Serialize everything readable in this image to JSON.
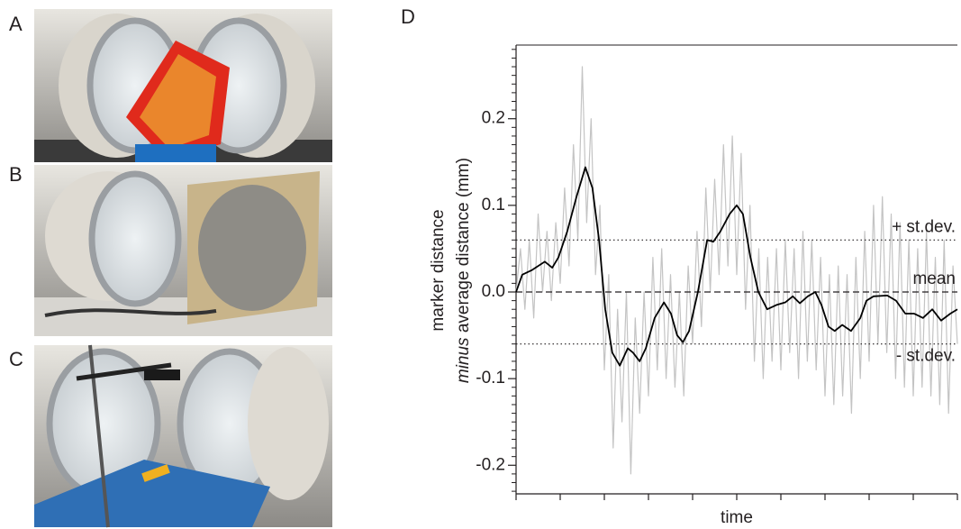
{
  "panels": [
    "A",
    "B",
    "C",
    "D"
  ],
  "chart_data": {
    "type": "line",
    "xlabel": "time",
    "ylabel": {
      "line1": "marker distance",
      "line2_italic": "minus",
      "line2": "average distance (mm)"
    },
    "xlim": [
      0,
      100
    ],
    "xticks": [
      0,
      10,
      20,
      30,
      40,
      50,
      60,
      70,
      80,
      90,
      100
    ],
    "ylim": [
      -0.233,
      0.285
    ],
    "yticks": [
      -0.2,
      -0.1,
      {
        "value": 0,
        "label": "0.0"
      },
      0.1,
      0.2
    ],
    "yminorticks": [
      -0.23,
      -0.22,
      -0.21,
      -0.19,
      -0.18,
      -0.17,
      -0.16,
      -0.15,
      -0.14,
      -0.13,
      -0.12,
      -0.11,
      -0.09,
      -0.08,
      -0.07,
      -0.06,
      -0.05,
      -0.04,
      -0.03,
      -0.02,
      -0.01,
      0.01,
      0.02,
      0.03,
      0.04,
      0.05,
      0.06,
      0.07,
      0.08,
      0.09,
      0.11,
      0.12,
      0.13,
      0.14,
      0.15,
      0.16,
      0.17,
      0.18,
      0.19,
      0.21,
      0.22,
      0.23,
      0.24,
      0.25,
      0.26,
      0.27,
      0.28
    ],
    "hlines": [
      {
        "value": 0.06,
        "label": "+ st.dev.",
        "style": "dotted"
      },
      {
        "value": 0,
        "label": "mean",
        "style": "dashed"
      },
      {
        "value": -0.06,
        "label": "- st.dev.",
        "style": "dotted"
      }
    ],
    "series": [
      {
        "color": "#c4c4c4",
        "x": [
          0,
          1,
          2,
          3,
          4,
          5,
          6,
          7,
          8,
          9,
          10,
          11,
          12,
          13,
          14,
          15,
          16,
          17,
          18,
          19,
          20,
          21,
          22,
          23,
          24,
          25,
          26,
          27,
          28,
          29,
          30,
          31,
          32,
          33,
          34,
          35,
          36,
          37,
          38,
          39,
          40,
          41,
          42,
          43,
          44,
          45,
          46,
          47,
          48,
          49,
          50,
          51,
          52,
          53,
          54,
          55,
          56,
          57,
          58,
          59,
          60,
          61,
          62,
          63,
          64,
          65,
          66,
          67,
          68,
          69,
          70,
          71,
          72,
          73,
          74,
          75,
          76,
          77,
          78,
          79,
          80,
          81,
          82,
          83,
          84,
          85,
          86,
          87,
          88,
          89,
          90,
          91,
          92,
          93,
          94,
          95,
          96,
          97,
          98,
          99,
          100
        ],
        "values": [
          0,
          0.05,
          -0.02,
          0.06,
          -0.03,
          0.09,
          0.0,
          0.07,
          -0.01,
          0.08,
          0.01,
          0.12,
          0.03,
          0.17,
          0.06,
          0.26,
          0.08,
          0.2,
          0.02,
          0.1,
          -0.09,
          0.02,
          -0.18,
          -0.02,
          -0.15,
          0.0,
          -0.21,
          -0.03,
          -0.14,
          0.0,
          -0.12,
          0.04,
          -0.09,
          0.05,
          -0.1,
          0.02,
          -0.11,
          0.0,
          -0.12,
          0.03,
          -0.06,
          0.07,
          -0.04,
          0.12,
          0.0,
          0.13,
          0.02,
          0.17,
          0.03,
          0.18,
          0.02,
          0.16,
          -0.02,
          0.1,
          -0.08,
          0.05,
          -0.1,
          0.04,
          -0.08,
          0.05,
          -0.09,
          0.06,
          -0.07,
          0.05,
          -0.1,
          0.07,
          -0.08,
          0.06,
          -0.09,
          0.04,
          -0.12,
          0.02,
          -0.13,
          0.03,
          -0.12,
          0.02,
          -0.14,
          0.04,
          -0.1,
          0.07,
          -0.08,
          0.1,
          -0.06,
          0.11,
          -0.07,
          0.09,
          -0.1,
          0.08,
          -0.11,
          0.06,
          -0.12,
          0.05,
          -0.11,
          0.07,
          -0.12,
          0.04,
          -0.13,
          0.06,
          -0.14,
          0.03,
          -0.06
        ]
      },
      {
        "color": "#000000",
        "x": [
          0,
          1.4,
          3.5,
          6.5,
          8.2,
          9.6,
          11.6,
          13.7,
          15.7,
          17.3,
          18.8,
          20.2,
          21.8,
          23.5,
          25.3,
          26.5,
          28.0,
          29.4,
          31.4,
          33.5,
          35.1,
          36.5,
          37.8,
          39.2,
          41.2,
          43.3,
          44.7,
          46.3,
          48.4,
          50.0,
          51.4,
          53.1,
          54.9,
          56.9,
          59.0,
          61.0,
          62.7,
          64.3,
          66.1,
          67.8,
          69.2,
          70.8,
          72.2,
          73.9,
          75.9,
          78.0,
          79.4,
          81.0,
          84.1,
          86.1,
          88.2,
          90.2,
          92.2,
          94.3,
          96.3,
          98.4,
          100
        ],
        "values": [
          0,
          0.02,
          0.025,
          0.035,
          0.028,
          0.04,
          0.07,
          0.11,
          0.144,
          0.12,
          0.06,
          -0.02,
          -0.07,
          -0.085,
          -0.065,
          -0.07,
          -0.08,
          -0.065,
          -0.03,
          -0.012,
          -0.025,
          -0.05,
          -0.058,
          -0.045,
          0,
          0.06,
          0.058,
          0.07,
          0.09,
          0.1,
          0.09,
          0.04,
          0,
          -0.02,
          -0.015,
          -0.012,
          -0.005,
          -0.013,
          -0.005,
          0,
          -0.015,
          -0.04,
          -0.045,
          -0.038,
          -0.045,
          -0.03,
          -0.01,
          -0.005,
          -0.004,
          -0.01,
          -0.025,
          -0.025,
          -0.03,
          -0.02,
          -0.033,
          -0.025,
          -0.02
        ]
      }
    ]
  }
}
